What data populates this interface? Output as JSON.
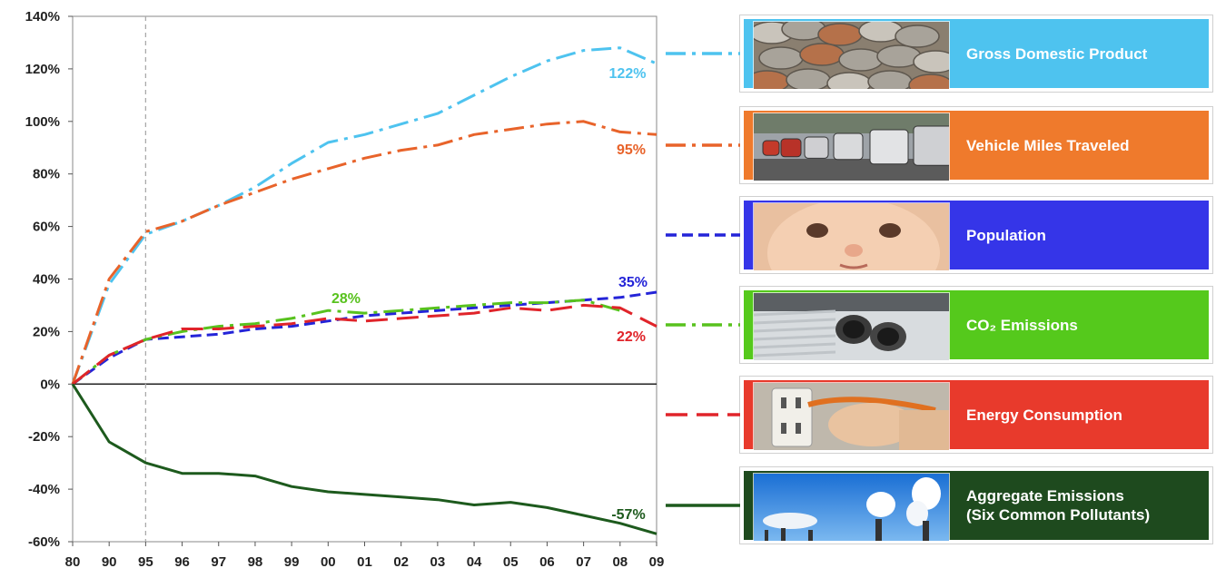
{
  "chart_data": {
    "type": "line",
    "x": [
      "80",
      "90",
      "95",
      "96",
      "97",
      "98",
      "99",
      "00",
      "01",
      "02",
      "03",
      "04",
      "05",
      "06",
      "07",
      "08",
      "09"
    ],
    "ylim": [
      -60,
      140
    ],
    "yticks": [
      -60,
      -40,
      -20,
      0,
      20,
      40,
      60,
      80,
      100,
      120,
      140
    ],
    "ytick_labels": [
      "-60%",
      "-40%",
      "-20%",
      "0%",
      "20%",
      "40%",
      "60%",
      "80%",
      "100%",
      "120%",
      "140%"
    ],
    "grid": false,
    "reference_line_x": "95",
    "series": [
      {
        "name": "Gross Domestic Product",
        "color": "#4ec3ef",
        "dash": "dash-dot",
        "values": [
          0,
          38,
          57,
          62,
          68,
          75,
          84,
          92,
          95,
          99,
          103,
          110,
          117,
          123,
          127,
          128,
          122
        ],
        "end_label": "122%"
      },
      {
        "name": "Vehicle Miles Traveled",
        "color": "#e8632a",
        "dash": "dash-dot",
        "values": [
          0,
          40,
          58,
          62,
          68,
          73,
          78,
          82,
          86,
          89,
          91,
          95,
          97,
          99,
          100,
          96,
          95
        ],
        "end_label": "95%"
      },
      {
        "name": "Population",
        "color": "#2424d8",
        "dash": "dash",
        "values": [
          0,
          10,
          17,
          18,
          19,
          21,
          22,
          24,
          26,
          27,
          28,
          29,
          30,
          31,
          32,
          33,
          35
        ],
        "end_label": "35%"
      },
      {
        "name": "CO2 Emissions",
        "color": "#58c21e",
        "dash": "dash-dot",
        "values": [
          0,
          11,
          17,
          20,
          22,
          23,
          25,
          28,
          27,
          28,
          29,
          30,
          31,
          31,
          32,
          28,
          null
        ],
        "end_label": "28%"
      },
      {
        "name": "Energy Consumption",
        "color": "#e0242a",
        "dash": "long-dash",
        "values": [
          0,
          11,
          17,
          21,
          21,
          22,
          23,
          25,
          24,
          25,
          26,
          27,
          29,
          28,
          30,
          29,
          22
        ],
        "end_label": "22%"
      },
      {
        "name": "Aggregate Emissions (Six Common Pollutants)",
        "color": "#1d5a1d",
        "dash": "solid",
        "values": [
          0,
          -22,
          -30,
          -34,
          -34,
          -35,
          -39,
          -41,
          -42,
          -43,
          -44,
          -46,
          -45,
          -47,
          -50,
          -53,
          -57
        ],
        "end_label": "-57%"
      }
    ]
  },
  "legend": [
    {
      "label": "Gross Domestic Product",
      "bg": "#4ec3ef",
      "thumb": "coins",
      "line_color": "#4ec3ef",
      "dash": "dash-dot"
    },
    {
      "label": "Vehicle Miles Traveled",
      "bg": "#ef7a2c",
      "thumb": "traffic",
      "line_color": "#e8632a",
      "dash": "dash-dot"
    },
    {
      "label": "Population",
      "bg": "#3535e8",
      "thumb": "baby",
      "line_color": "#2424d8",
      "dash": "dash"
    },
    {
      "label": "CO₂ Emissions",
      "bg": "#55c91c",
      "thumb": "exhaust",
      "line_color": "#58c21e",
      "dash": "dash-dot"
    },
    {
      "label": "Energy Consumption",
      "bg": "#e83a2c",
      "thumb": "plug",
      "line_color": "#e0242a",
      "dash": "long-dash"
    },
    {
      "label": "Aggregate Emissions\n(Six Common Pollutants)",
      "bg": "#1e4a1e",
      "thumb": "smokestacks",
      "line_color": "#1d5a1d",
      "dash": "solid"
    }
  ]
}
